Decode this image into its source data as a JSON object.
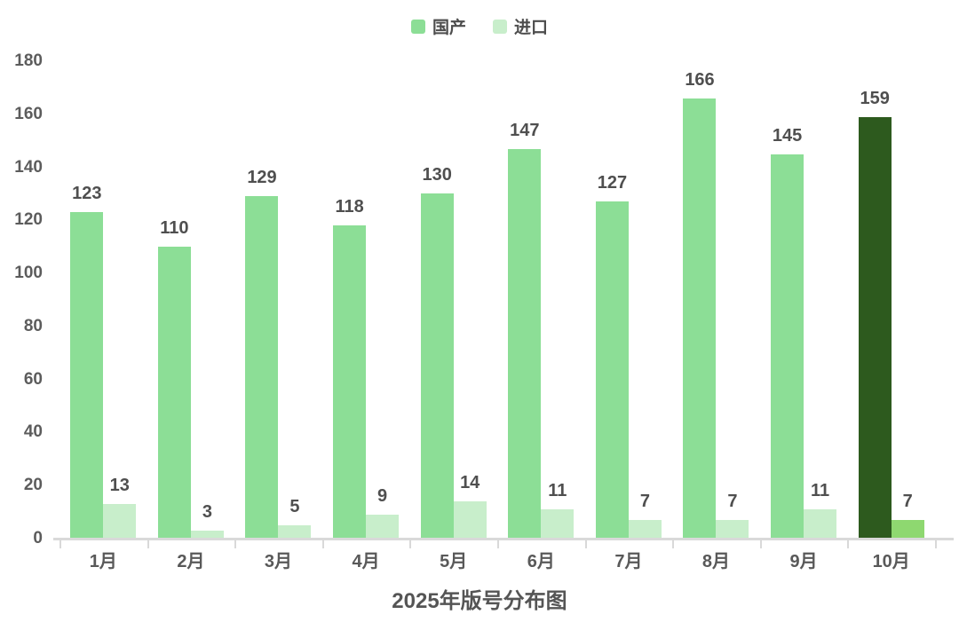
{
  "page": {
    "background": "#ffffff"
  },
  "title": {
    "text": "2025年版号分布图",
    "color": "#555555",
    "position": "bottom-center"
  },
  "legend": {
    "position": "top-center",
    "items": [
      {
        "label": "国产",
        "color": "#8CDE96"
      },
      {
        "label": "进口",
        "color": "#C8EECB"
      }
    ]
  },
  "axis": {
    "line_color": "#d9d9d9",
    "label_color": "#5c5c5c"
  },
  "chart_data": {
    "type": "bar",
    "title": "2025年版号分布图",
    "xlabel": "",
    "ylabel": "",
    "categories": [
      "1月",
      "2月",
      "3月",
      "4月",
      "5月",
      "6月",
      "7月",
      "8月",
      "9月",
      "10月"
    ],
    "series": [
      {
        "name": "国产",
        "key": "domestic",
        "color": "#8CDE96",
        "values": [
          123,
          110,
          129,
          118,
          130,
          147,
          127,
          166,
          145,
          159
        ],
        "highlight": {
          "index": 9,
          "color": "#2D5A1E"
        }
      },
      {
        "name": "进口",
        "key": "import",
        "color": "#C8EECB",
        "values": [
          13,
          3,
          5,
          9,
          14,
          11,
          7,
          7,
          11,
          7
        ],
        "highlight": {
          "index": 9,
          "color": "#8ED870"
        }
      }
    ],
    "ylim": [
      0,
      180
    ],
    "y_ticks": [
      0,
      20,
      40,
      60,
      80,
      100,
      120,
      140,
      160,
      180
    ],
    "grid": false,
    "legend_position": "top",
    "value_labels": true
  }
}
